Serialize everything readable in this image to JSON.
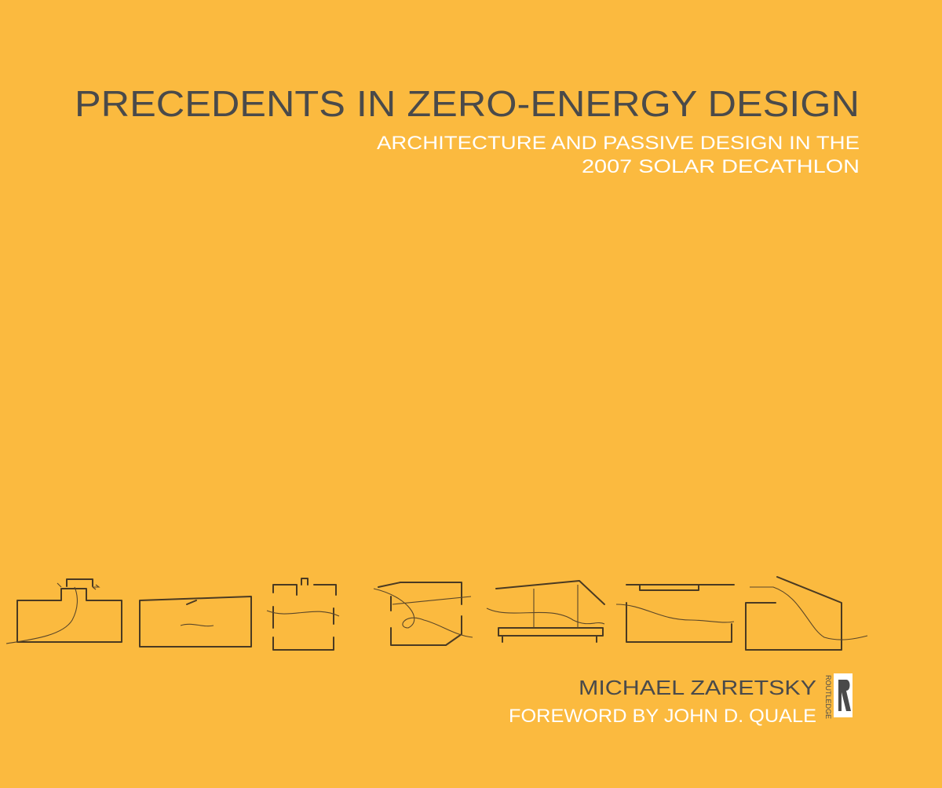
{
  "cover": {
    "title": "PRECEDENTS IN ZERO-ENERGY DESIGN",
    "subtitle": [
      "ARCHITECTURE AND PASSIVE DESIGN IN THE",
      "2007 SOLAR DECATHLON"
    ],
    "author": "MICHAEL ZARETSKY",
    "foreword": "FOREWORD BY JOHN D. QUALE",
    "publisher": "ROUTLEDGE"
  }
}
